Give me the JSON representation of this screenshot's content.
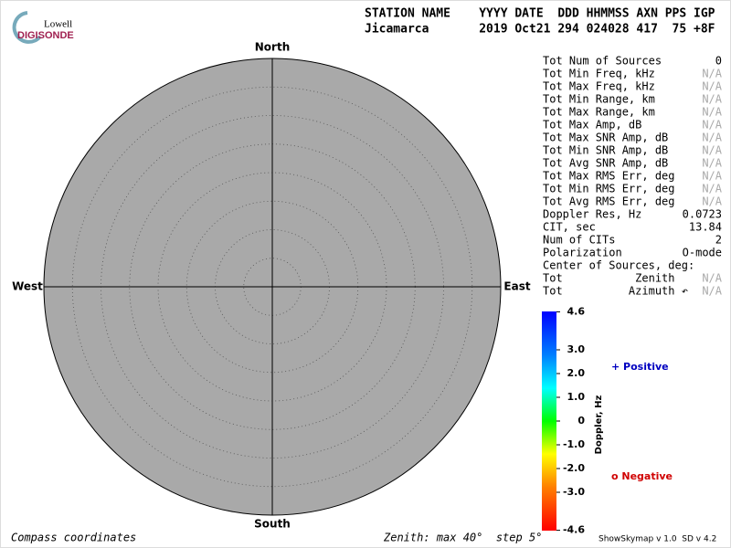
{
  "logo": {
    "top": "Lowell",
    "bottom": "DIGISONDE"
  },
  "header": {
    "line1": "STATION NAME    YYYY DATE  DDD HHMMSS AXN PPS IGP",
    "line2": "Jicamarca       2019 Oct21 294 024028 417  75 +8F"
  },
  "skymap": {
    "north": "North",
    "south": "South",
    "west": "West",
    "east": "East"
  },
  "stats": [
    [
      "Tot Num of Sources",
      "0"
    ],
    [
      "Tot Min Freq, kHz",
      "N/A"
    ],
    [
      "Tot Max Freq, kHz",
      "N/A"
    ],
    [
      "Tot Min Range, km",
      "N/A"
    ],
    [
      "Tot Max Range, km",
      "N/A"
    ],
    [
      "Tot Max Amp, dB",
      "N/A"
    ],
    [
      "Tot Max SNR Amp, dB",
      "N/A"
    ],
    [
      "Tot Min SNR Amp, dB",
      "N/A"
    ],
    [
      "Tot Avg SNR Amp, dB",
      "N/A"
    ],
    [
      "Tot Max RMS Err, deg",
      "N/A"
    ],
    [
      "Tot Min RMS Err, deg",
      "N/A"
    ],
    [
      "Tot Avg RMS Err, deg",
      "N/A"
    ],
    [
      "Doppler Res, Hz",
      "0.0723"
    ],
    [
      "CIT, sec",
      "13.84"
    ],
    [
      "Num of CITs",
      "2"
    ],
    [
      "Polarization",
      "O-mode"
    ],
    [
      "Center of Sources, deg:",
      ""
    ],
    [
      "Tot           Zenith",
      "N/A"
    ],
    [
      "Tot          Azimuth ↶",
      "N/A"
    ]
  ],
  "colorbar": {
    "label": "Doppler, Hz",
    "ticks": [
      4.6,
      {
        "value": 3,
        "label": "3.0"
      },
      {
        "value": 2,
        "label": "2.0"
      },
      {
        "value": 1,
        "label": "1.0"
      },
      0,
      {
        "value": -1,
        "label": "-1.0"
      },
      {
        "value": -2,
        "label": "-2.0"
      },
      {
        "value": -3,
        "label": "-3.0"
      },
      -4.6
    ]
  },
  "legend": {
    "positive": "+ Positive",
    "negative": "o Negative"
  },
  "footer": {
    "coords": "Compass coordinates",
    "zenith": "Zenith: max 40°  step 5°",
    "version": "ShowSkymap v 1.0  SD v 4.2"
  }
}
